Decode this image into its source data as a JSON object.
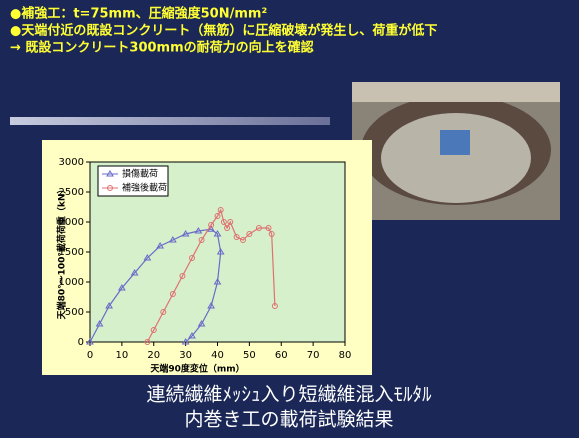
{
  "slide": {
    "lines": [
      "●補強工：t=75mm、圧縮強度50N/mm²",
      "●天端付近の既設コンクリート（無筋）に圧縮破壊が発生し、荷重が低下",
      "→ 既設コンクリート300mmの耐荷力の向上を確認"
    ],
    "caption": [
      "連続繊維ﾒｯｼｭ入り短繊維混入ﾓﾙﾀﾙ",
      "内巻き工の載荷試験結果"
    ]
  },
  "chart_data": {
    "type": "line",
    "xlabel": "天端90度変位（mm）",
    "ylabel": "天端80°～100°載荷荷重（kN）",
    "xlim": [
      0,
      80
    ],
    "xticks": [
      0,
      10,
      20,
      30,
      40,
      50,
      60,
      70,
      80
    ],
    "ylim": [
      0,
      3000
    ],
    "yticks": [
      0,
      500,
      1000,
      1500,
      2000,
      2500,
      3000
    ],
    "legend": "upper left",
    "series": [
      {
        "name": "損傷載荷",
        "color": "#6a6ac8",
        "marker": "triangle",
        "x": [
          0,
          3,
          6,
          10,
          14,
          18,
          22,
          26,
          30,
          34,
          38,
          40,
          41,
          40,
          38,
          35,
          32,
          30
        ],
        "values": [
          0,
          300,
          600,
          900,
          1150,
          1400,
          1600,
          1700,
          1800,
          1850,
          1880,
          1800,
          1500,
          1000,
          600,
          300,
          100,
          0
        ]
      },
      {
        "name": "補強後載荷",
        "color": "#e07070",
        "marker": "circle",
        "x": [
          18,
          20,
          23,
          26,
          29,
          32,
          35,
          38,
          40,
          41,
          42,
          43,
          44,
          46,
          48,
          50,
          53,
          56,
          57,
          58
        ],
        "values": [
          0,
          200,
          500,
          800,
          1100,
          1400,
          1700,
          1950,
          2100,
          2200,
          2000,
          1900,
          2000,
          1750,
          1700,
          1800,
          1900,
          1900,
          1800,
          600
        ]
      }
    ]
  }
}
